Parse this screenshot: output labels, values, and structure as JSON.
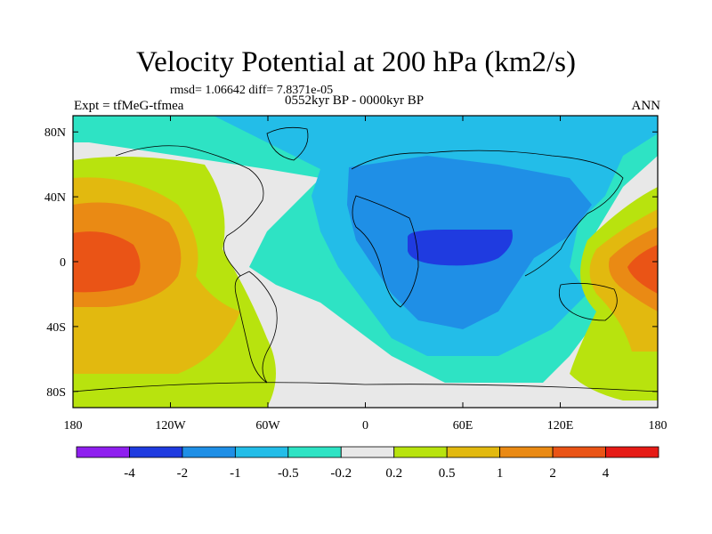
{
  "header": {
    "title": "Velocity Potential at 200 hPa (km2/s)",
    "stats": "rmsd= 1.06642  diff= 7.8371e-05",
    "experiment": "Expt = tfMeG-tfmea",
    "period": "0552kyr BP - 0000kyr BP",
    "season": "ANN"
  },
  "chart_data": {
    "type": "heatmap",
    "title": "Velocity Potential at 200 hPa (km2/s)",
    "projection": "cylindrical equidistant, centered on 0 longitude",
    "xlabel": "",
    "ylabel": "",
    "xlim": [
      -180,
      180
    ],
    "ylim": [
      -90,
      90
    ],
    "x_ticks": [
      {
        "value": -180,
        "label": "180"
      },
      {
        "value": -120,
        "label": "120W"
      },
      {
        "value": -60,
        "label": "60W"
      },
      {
        "value": 0,
        "label": "0"
      },
      {
        "value": 60,
        "label": "60E"
      },
      {
        "value": 120,
        "label": "120E"
      },
      {
        "value": 180,
        "label": "180"
      }
    ],
    "y_ticks": [
      {
        "value": 80,
        "label": "80N"
      },
      {
        "value": 40,
        "label": "40N"
      },
      {
        "value": 0,
        "label": "0"
      },
      {
        "value": -40,
        "label": "40S"
      },
      {
        "value": -80,
        "label": "80S"
      }
    ],
    "colorbar": {
      "levels": [
        -4,
        -2,
        -1,
        -0.5,
        -0.2,
        0.2,
        0.5,
        1,
        2,
        4
      ],
      "level_labels": [
        "-4",
        "-2",
        "-1",
        "-0.5",
        "-0.2",
        "0.2",
        "0.5",
        "1",
        "2",
        "4"
      ],
      "colors": [
        "#8f1fef",
        "#1f3be0",
        "#1f8fe6",
        "#23bde8",
        "#2ee3c4",
        "#e8e8e8",
        "#b8e30e",
        "#e2b90f",
        "#ea8a14",
        "#ea5416",
        "#e61b16"
      ]
    },
    "features": [
      {
        "name": "pacific-max-west",
        "lon": -160,
        "lat": -2,
        "value": 3.0
      },
      {
        "name": "pacific-max-east",
        "lon": 172,
        "lat": 0,
        "value": 2.5
      },
      {
        "name": "africa-indian-min",
        "lon": 45,
        "lat": 5,
        "value": -2.5
      },
      {
        "name": "eurasia-trough",
        "lon": 50,
        "lat": 40,
        "value": -1.0
      }
    ]
  }
}
